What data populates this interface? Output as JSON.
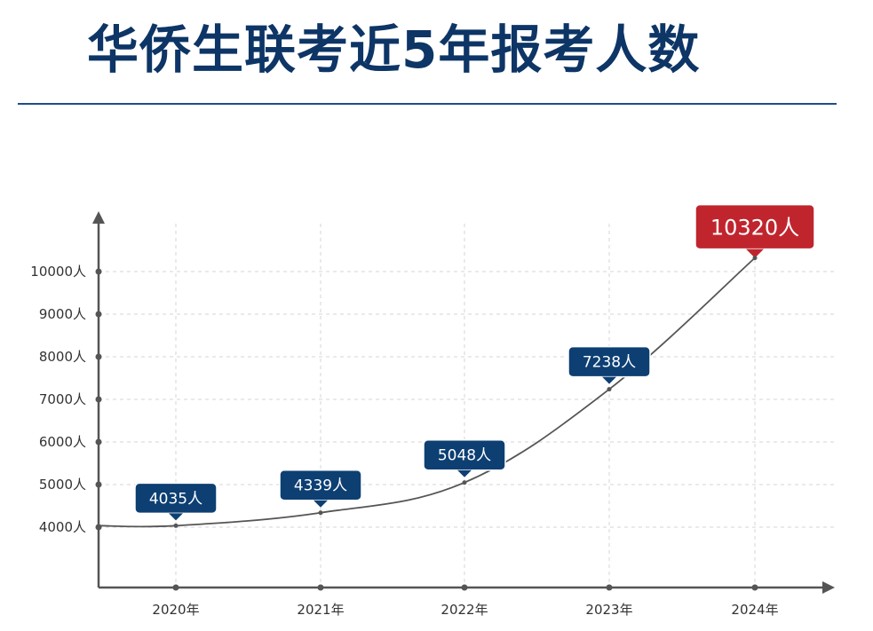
{
  "title": "华侨生联考近5年报考人数",
  "chart_data": {
    "type": "line",
    "title": "华侨生联考近5年报考人数",
    "categories": [
      "2020年",
      "2021年",
      "2022年",
      "2023年",
      "2024年"
    ],
    "values": [
      4035,
      4339,
      5048,
      7238,
      10320
    ],
    "data_labels": [
      "4035人",
      "4339人",
      "5048人",
      "7238人",
      "10320人"
    ],
    "y_ticks": [
      4000,
      5000,
      6000,
      7000,
      8000,
      9000,
      10000
    ],
    "y_tick_labels": [
      "4000人",
      "5000人",
      "6000人",
      "7000人",
      "8000人",
      "9000人",
      "10000人"
    ],
    "ylim": [
      4000,
      10320
    ],
    "grid": true,
    "colors": {
      "title": "#0d3566",
      "rule": "#1f4d86",
      "bubble": "#0d3f73",
      "highlight_bubble": "#c0252e",
      "line": "#555555",
      "axis": "#555555",
      "grid": "#d4d4d4"
    }
  }
}
